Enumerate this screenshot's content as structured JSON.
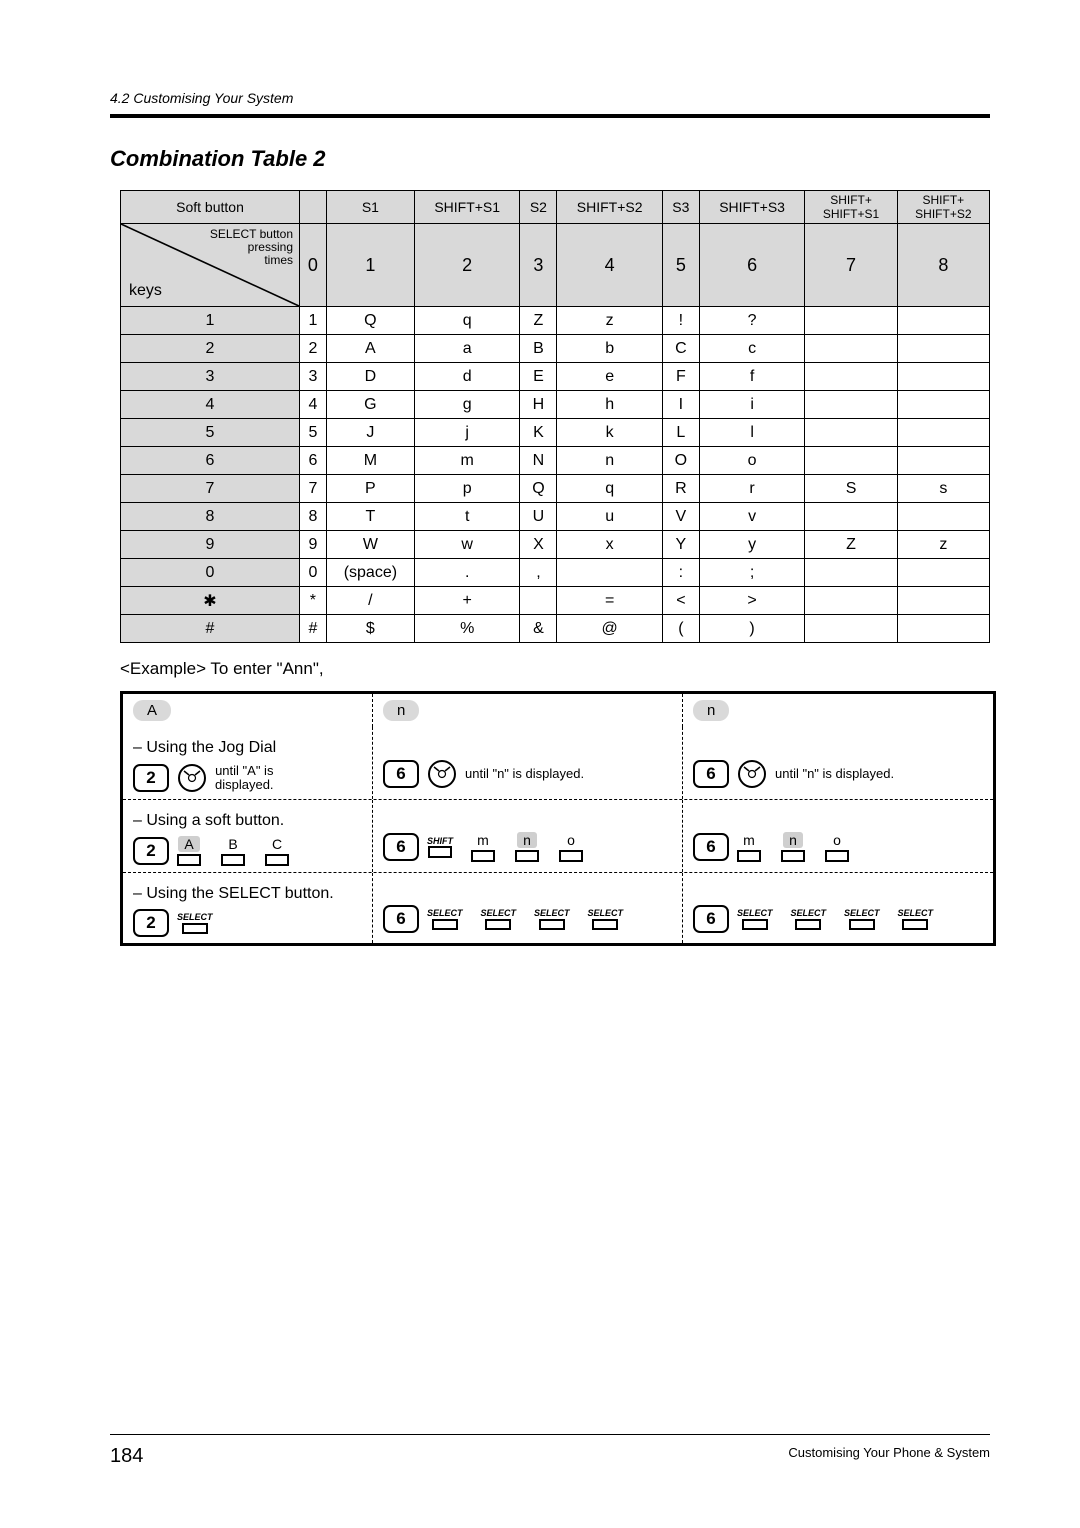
{
  "header_section": "4.2   Customising Your System",
  "title": "Combination Table 2",
  "table": {
    "col_headers_top": [
      "Soft button",
      "",
      "S1",
      "SHIFT+S1",
      "S2",
      "SHIFT+S2",
      "S3",
      "SHIFT+S3",
      "SHIFT+\nSHIFT+S1",
      "SHIFT+\nSHIFT+S2"
    ],
    "diag_top": "SELECT button\npressing\ntimes",
    "diag_bottom": "keys",
    "press_counts": [
      "0",
      "1",
      "2",
      "3",
      "4",
      "5",
      "6",
      "7",
      "8"
    ],
    "rows": [
      {
        "key": "1",
        "cells": [
          "1",
          "Q",
          "q",
          "Z",
          "z",
          "!",
          "?",
          "",
          ""
        ]
      },
      {
        "key": "2",
        "cells": [
          "2",
          "A",
          "a",
          "B",
          "b",
          "C",
          "c",
          "",
          ""
        ]
      },
      {
        "key": "3",
        "cells": [
          "3",
          "D",
          "d",
          "E",
          "e",
          "F",
          "f",
          "",
          ""
        ]
      },
      {
        "key": "4",
        "cells": [
          "4",
          "G",
          "g",
          "H",
          "h",
          "I",
          "i",
          "",
          ""
        ]
      },
      {
        "key": "5",
        "cells": [
          "5",
          "J",
          "j",
          "K",
          "k",
          "L",
          "l",
          "",
          ""
        ]
      },
      {
        "key": "6",
        "cells": [
          "6",
          "M",
          "m",
          "N",
          "n",
          "O",
          "o",
          "",
          ""
        ]
      },
      {
        "key": "7",
        "cells": [
          "7",
          "P",
          "p",
          "Q",
          "q",
          "R",
          "r",
          "S",
          "s"
        ]
      },
      {
        "key": "8",
        "cells": [
          "8",
          "T",
          "t",
          "U",
          "u",
          "V",
          "v",
          "",
          ""
        ]
      },
      {
        "key": "9",
        "cells": [
          "9",
          "W",
          "w",
          "X",
          "x",
          "Y",
          "y",
          "Z",
          "z"
        ]
      },
      {
        "key": "0",
        "cells": [
          "0",
          "(space)",
          ".",
          ",",
          "",
          ":",
          ";",
          "",
          ""
        ]
      },
      {
        "key": "✱",
        "cells": [
          "*",
          "/",
          "+",
          "",
          "=",
          "<",
          ">",
          "",
          ""
        ]
      },
      {
        "key": "#",
        "cells": [
          "#",
          "$",
          "%",
          "&",
          "@",
          "(",
          ")",
          "",
          ""
        ]
      }
    ]
  },
  "example_intro": "<Example> To enter \"Ann\",",
  "example": {
    "letters": [
      "A",
      "n",
      "n"
    ],
    "jogdial": {
      "method_label": "– Using the Jog Dial",
      "col1_key": "2",
      "col1_text": "until \"A\" is\ndisplayed.",
      "col2_key": "6",
      "col2_text": "until \"n\" is displayed.",
      "col3_key": "6",
      "col3_text": "until \"n\" is displayed."
    },
    "softbutton": {
      "method_label": "– Using a soft button.",
      "col1_key": "2",
      "col1_labels": [
        "A",
        "B",
        "C"
      ],
      "shift_label": "SHIFT",
      "col2_key": "6",
      "col2_labels": [
        "m",
        "n",
        "o"
      ],
      "col3_key": "6",
      "col3_labels": [
        "m",
        "n",
        "o"
      ]
    },
    "selectbutton": {
      "method_label": "– Using the SELECT button.",
      "col1_key": "2",
      "col1_count": 1,
      "col2_key": "6",
      "col2_count": 4,
      "col3_key": "6",
      "col3_count": 4,
      "select_label": "SELECT"
    }
  },
  "footer": {
    "page": "184",
    "right": "Customising Your Phone & System"
  },
  "colors": {
    "header_bg": "#d9d9d9",
    "border": "#000000",
    "text": "#000000",
    "background": "#ffffff"
  }
}
